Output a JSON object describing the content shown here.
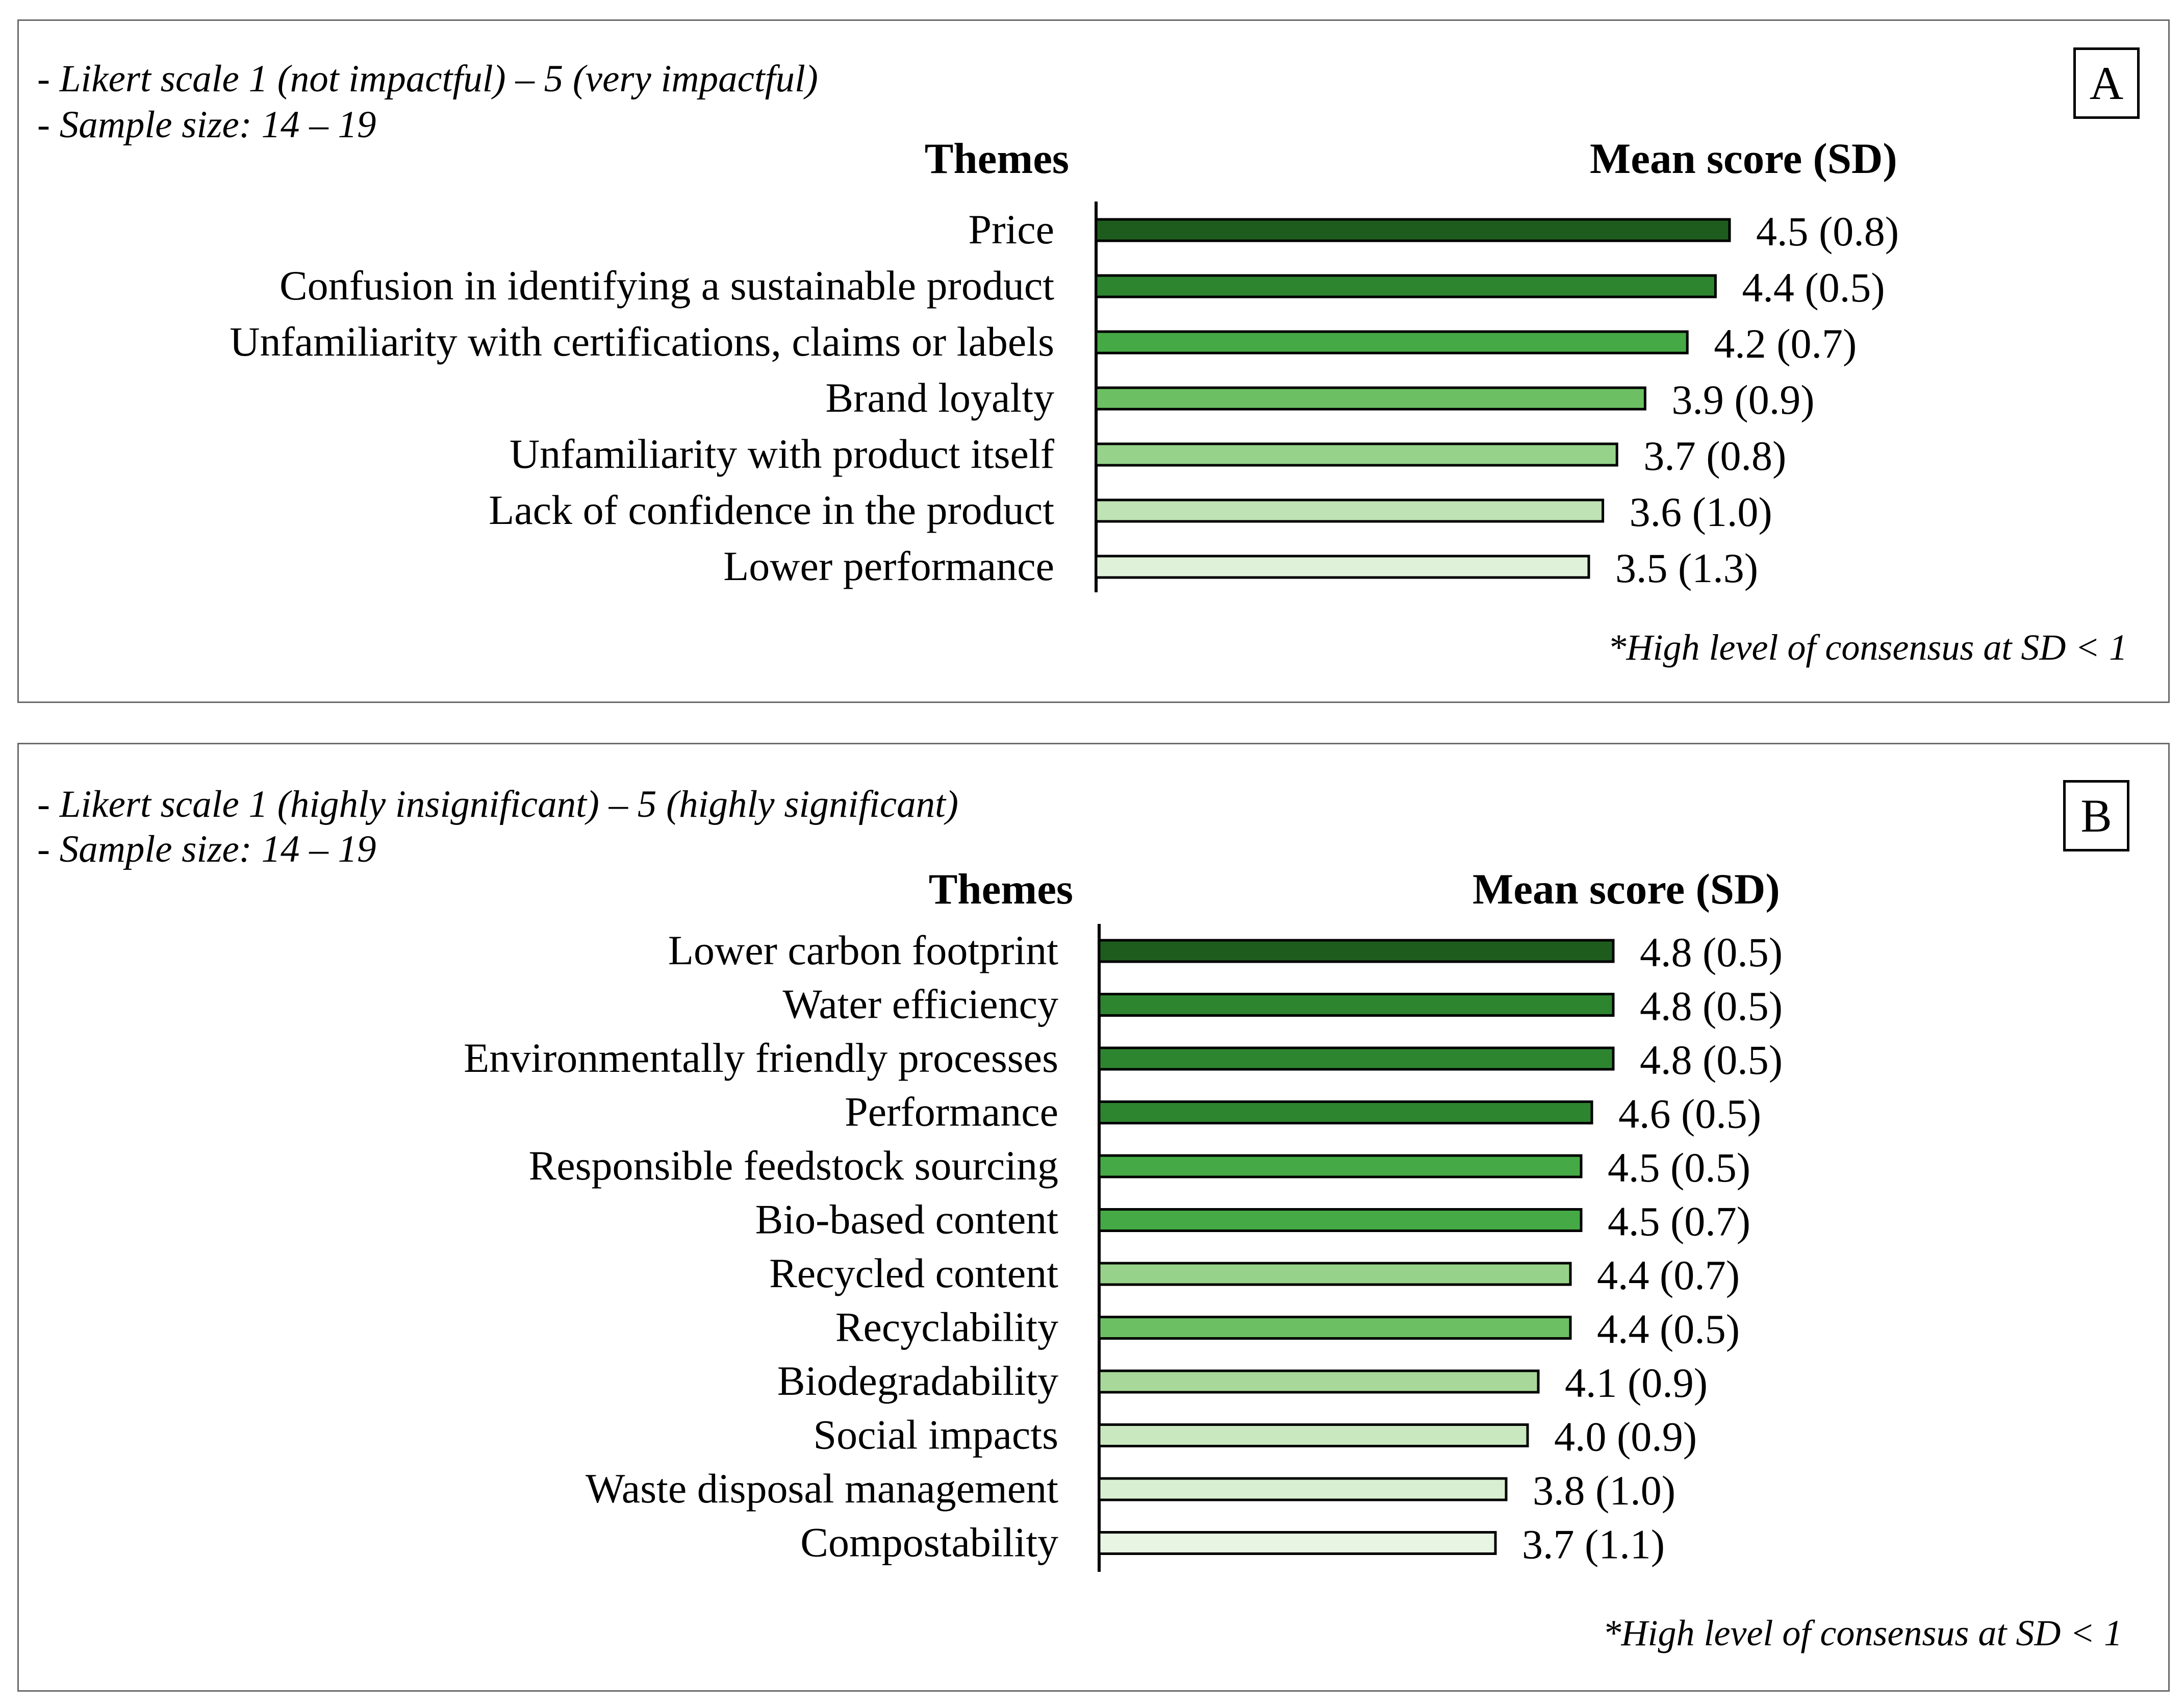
{
  "chart_data": [
    {
      "type": "bar",
      "orientation": "horizontal",
      "panel_label": "A",
      "notes": [
        "- Likert scale 1 (not impactful) – 5 (very impactful)",
        "- Sample size: 14 – 19"
      ],
      "category_header": "Themes",
      "value_header": "Mean score (SD)",
      "footnote": "*High level of consensus at SD < 1",
      "categories": [
        "Price",
        "Confusion in identifying a sustainable product",
        "Unfamiliarity with certifications, claims or labels",
        "Brand loyalty",
        "Unfamiliarity with product itself",
        "Lack of confidence in the product",
        "Lower performance"
      ],
      "values": [
        4.5,
        4.4,
        4.2,
        3.9,
        3.7,
        3.6,
        3.5
      ],
      "sd": [
        0.8,
        0.5,
        0.7,
        0.9,
        0.8,
        1.0,
        1.3
      ],
      "data_labels": [
        "4.5 (0.8)",
        "4.4 (0.5)",
        "4.2 (0.7)",
        "3.9 (0.9)",
        "3.7 (0.8)",
        "3.6 (1.0)",
        "3.5 (1.3)"
      ],
      "colors": [
        "#1e5c1e",
        "#2e8530",
        "#45a945",
        "#6cbf63",
        "#96d289",
        "#bfe3b4",
        "#e0f1da"
      ],
      "xlim": [
        0,
        5
      ]
    },
    {
      "type": "bar",
      "orientation": "horizontal",
      "panel_label": "B",
      "notes": [
        "- Likert scale 1 (highly insignificant) – 5 (highly significant)",
        "- Sample size: 14 – 19"
      ],
      "category_header": "Themes",
      "value_header": "Mean score (SD)",
      "footnote": "*High level of consensus at SD < 1",
      "categories": [
        "Lower carbon footprint",
        "Water efficiency",
        "Environmentally friendly processes",
        "Performance",
        "Responsible feedstock sourcing",
        "Bio-based content",
        "Recycled content",
        "Recyclability",
        "Biodegradability",
        "Social impacts",
        "Waste disposal management",
        "Compostability"
      ],
      "values": [
        4.8,
        4.8,
        4.8,
        4.6,
        4.5,
        4.5,
        4.4,
        4.4,
        4.1,
        4.0,
        3.8,
        3.7
      ],
      "sd": [
        0.5,
        0.5,
        0.5,
        0.5,
        0.5,
        0.7,
        0.7,
        0.5,
        0.9,
        0.9,
        1.0,
        1.1
      ],
      "data_labels": [
        "4.8 (0.5)",
        "4.8 (0.5)",
        "4.8 (0.5)",
        "4.6 (0.5)",
        "4.5 (0.5)",
        "4.5 (0.7)",
        "4.4 (0.7)",
        "4.4 (0.5)",
        "4.1 (0.9)",
        "4.0 (0.9)",
        "3.8 (1.0)",
        "3.7 (1.1)"
      ],
      "colors": [
        "#1e5c1e",
        "#2e8530",
        "#2e8530",
        "#2e8530",
        "#45a945",
        "#45a945",
        "#96d289",
        "#6cbf63",
        "#a8d99a",
        "#c9e8bf",
        "#d9efd2",
        "#e8f5e3"
      ],
      "xlim": [
        0,
        5
      ]
    }
  ]
}
